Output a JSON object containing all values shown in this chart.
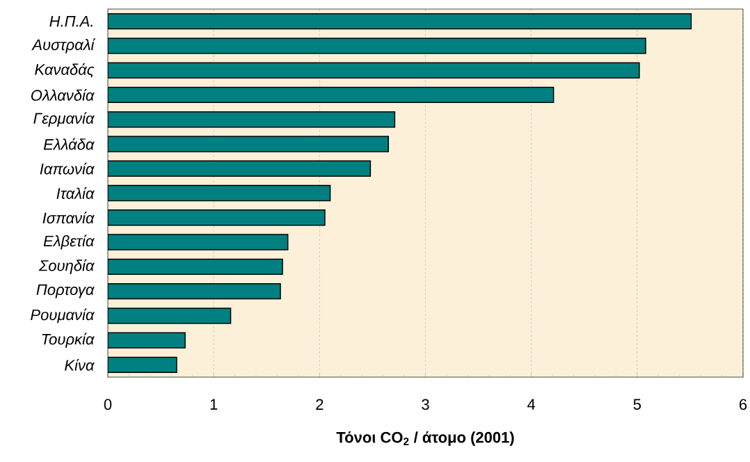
{
  "chart_data": {
    "type": "bar",
    "orientation": "horizontal",
    "xlabel": "Τόνοι CO$_{2}$ / άτομο (2001)",
    "categories": [
      "Η.Π.Α.",
      "Αυστραλί",
      "Καναδάς",
      "Ολλανδία",
      "Γερμανία",
      "Ελλάδα",
      "Ιαπωνία",
      "Ιταλία",
      "Ισπανία",
      "Ελβετία",
      "Σουηδία",
      "Πορτογα",
      "Ρουμανία",
      "Τουρκία",
      "Κίνα"
    ],
    "values": [
      5.51,
      5.08,
      5.02,
      4.21,
      2.71,
      2.65,
      2.48,
      2.1,
      2.05,
      1.7,
      1.65,
      1.63,
      1.16,
      0.73,
      0.65
    ],
    "color": "#008080",
    "xlim": [
      0,
      6
    ],
    "xticks": [
      0,
      1,
      2,
      3,
      4,
      5,
      6
    ],
    "grid": "x"
  }
}
